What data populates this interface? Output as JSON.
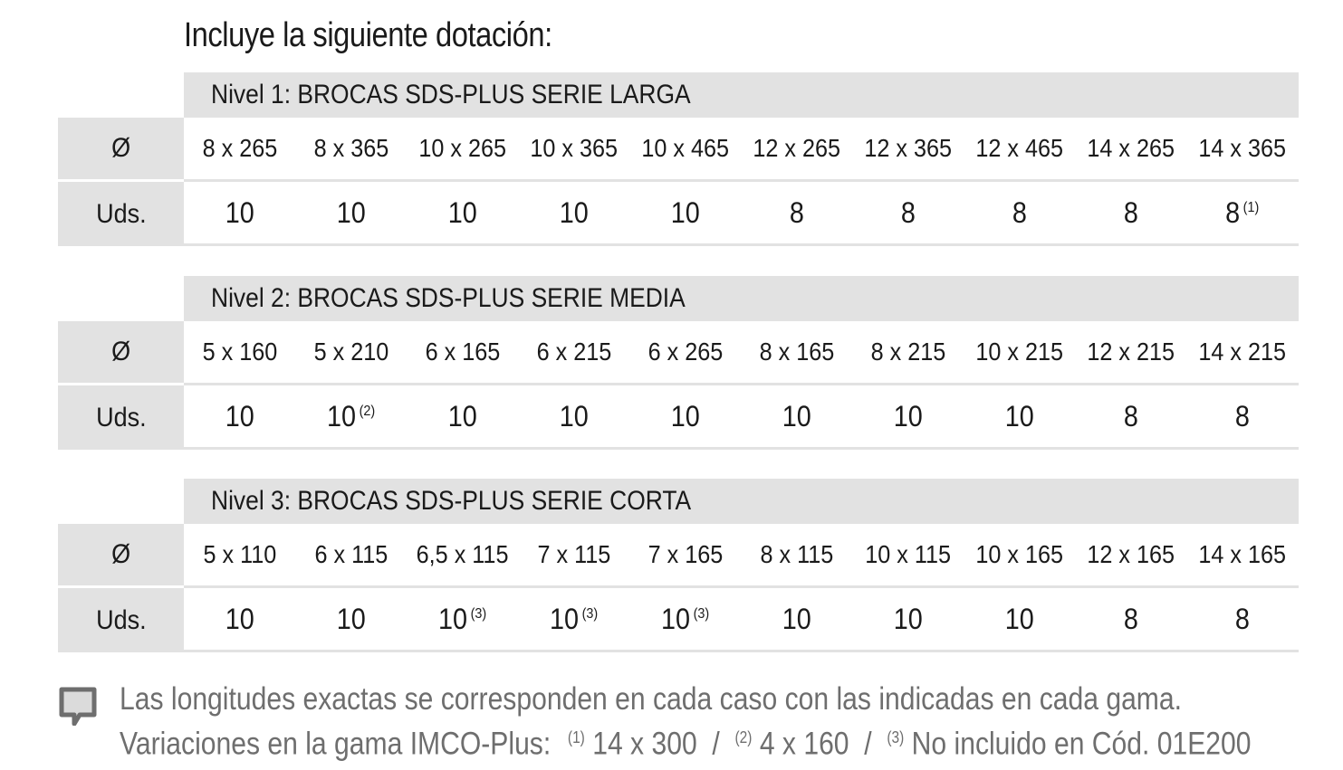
{
  "title": "Incluye la siguiente dotación:",
  "labels": {
    "diameter": "Ø",
    "units": "Uds."
  },
  "levels": [
    {
      "heading": "Nivel 1: BROCAS SDS-PLUS SERIE LARGA",
      "sizes": [
        "8 x 265",
        "8 x 365",
        "10 x 265",
        "10 x 365",
        "10 x 465",
        "12 x 265",
        "12 x 365",
        "12 x 465",
        "14 x 265",
        "14 x 365"
      ],
      "units": [
        "10",
        "10",
        "10",
        "10",
        "10",
        "8",
        "8",
        "8",
        "8",
        "8"
      ],
      "notes": [
        "",
        "",
        "",
        "",
        "",
        "",
        "",
        "",
        "",
        "(1)"
      ]
    },
    {
      "heading": "Nivel 2: BROCAS SDS-PLUS SERIE MEDIA",
      "sizes": [
        "5 x 160",
        "5 x 210",
        "6 x 165",
        "6 x 215",
        "6 x 265",
        "8 x 165",
        "8 x 215",
        "10 x 215",
        "12 x 215",
        "14 x 215"
      ],
      "units": [
        "10",
        "10",
        "10",
        "10",
        "10",
        "10",
        "10",
        "10",
        "8",
        "8"
      ],
      "notes": [
        "",
        "(2)",
        "",
        "",
        "",
        "",
        "",
        "",
        "",
        ""
      ]
    },
    {
      "heading": "Nivel 3: BROCAS SDS-PLUS SERIE CORTA",
      "sizes": [
        "5 x 110",
        "6 x 115",
        "6,5 x 115",
        "7 x 115",
        "7 x 165",
        "8 x 115",
        "10 x 115",
        "10 x 165",
        "12 x 165",
        "14 x 165"
      ],
      "units": [
        "10",
        "10",
        "10",
        "10",
        "10",
        "10",
        "10",
        "10",
        "8",
        "8"
      ],
      "notes": [
        "",
        "",
        "(3)",
        "(3)",
        "(3)",
        "",
        "",
        "",
        "",
        ""
      ]
    }
  ],
  "footnote": {
    "line1": "Las longitudes exactas se corresponden en cada caso con las indicadas en cada gama.",
    "line2_prefix": "Variaciones en la gama IMCO-Plus:",
    "items": [
      {
        "mark": "(1)",
        "text": "14 x 300"
      },
      {
        "mark": "(2)",
        "text": "4 x 160"
      },
      {
        "mark": "(3)",
        "text": "No incluido en Cód. 01E200"
      }
    ],
    "separator": "/",
    "icon": "comment-icon",
    "icon_color": "#6e6e6e"
  },
  "colors": {
    "band": "#e2e2e2",
    "text": "#1a1a1a",
    "note": "#6e6e6e"
  }
}
